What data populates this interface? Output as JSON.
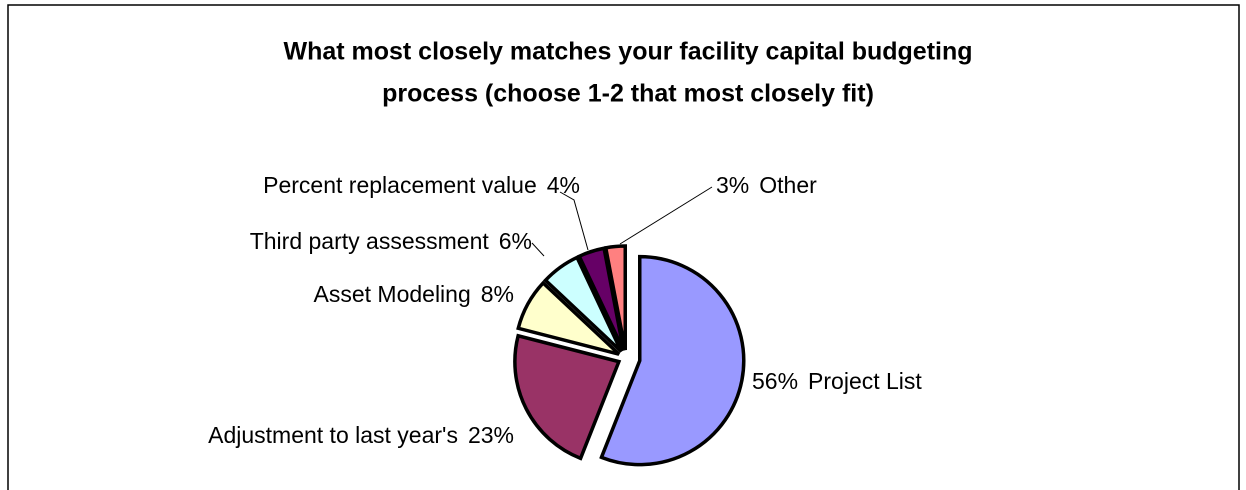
{
  "chart_data": {
    "type": "pie",
    "title": [
      "What most closely matches your facility capital budgeting",
      "process (choose 1-2 that most closely fit)"
    ],
    "categories": [
      "Project List",
      "Adjustment to last year's",
      "Asset Modeling",
      "Third party assessment",
      "Percent replacement value",
      "Other"
    ],
    "values": [
      56,
      23,
      8,
      6,
      4,
      3
    ],
    "value_labels": [
      "56%",
      "23%",
      "8%",
      "6%",
      "4%",
      "3%"
    ],
    "colors": [
      "#9999ff",
      "#993366",
      "#ffffcc",
      "#ccffff",
      "#660066",
      "#ff8080"
    ]
  }
}
